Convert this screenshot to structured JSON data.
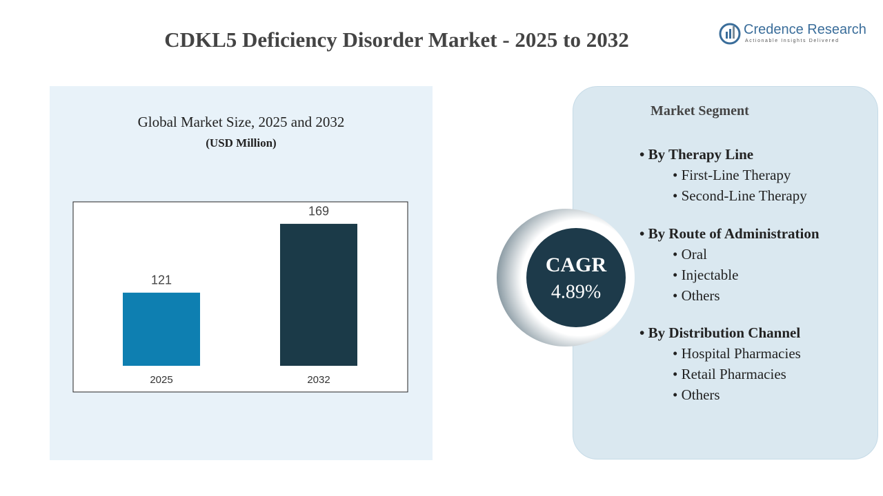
{
  "title": "CDKL5 Deficiency Disorder Market - 2025 to 2032",
  "logo": {
    "name": "Credence Research",
    "tagline": "Actionable Insights Delivered"
  },
  "chart_data": {
    "type": "bar",
    "title": "Global Market Size, 2025 and 2032",
    "subtitle": "(USD Million)",
    "categories": [
      "2025",
      "2032"
    ],
    "values": [
      121,
      169
    ],
    "colors": [
      "#0e7fb1",
      "#1b3a48"
    ],
    "ylim": [
      70,
      180
    ]
  },
  "cagr": {
    "label": "CAGR",
    "value": "4.89%"
  },
  "segments": {
    "title": "Market Segment",
    "groups": [
      {
        "title": "By Therapy Line",
        "items": [
          "First-Line Therapy",
          "Second-Line Therapy"
        ]
      },
      {
        "title": "By Route of Administration",
        "items": [
          "Oral",
          "Injectable",
          "Others"
        ]
      },
      {
        "title": "By Distribution Channel",
        "items": [
          "Hospital Pharmacies",
          "Retail Pharmacies",
          "Others"
        ]
      }
    ]
  }
}
